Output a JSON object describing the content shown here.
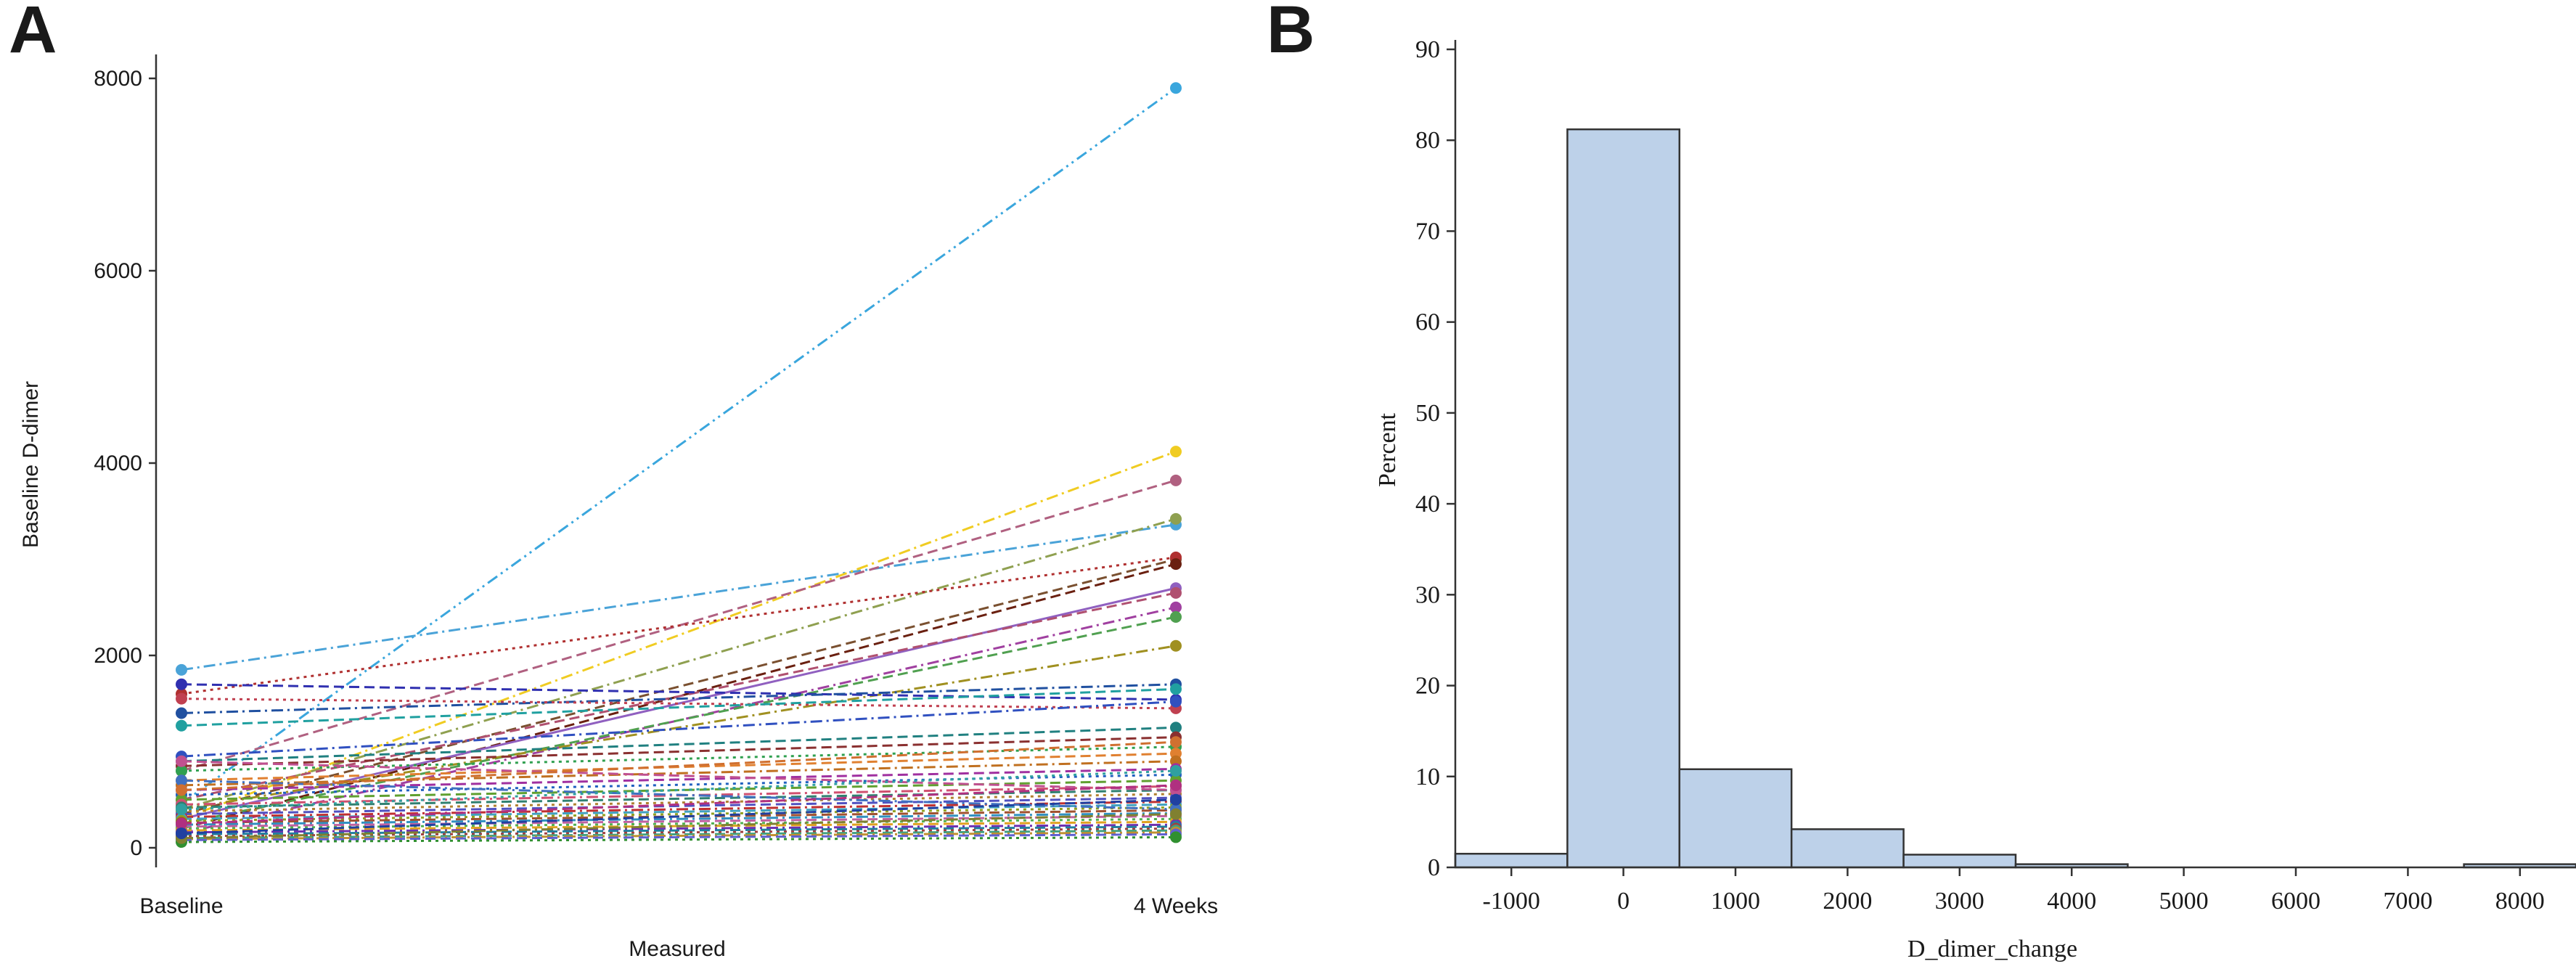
{
  "panels": {
    "a": {
      "letter": "A"
    },
    "b": {
      "letter": "B"
    }
  },
  "chart_data": [
    {
      "type": "line",
      "panel": "A",
      "xlabel": "Measured",
      "ylabel": "Baseline D-dimer",
      "categories": [
        "Baseline",
        "4 Weeks"
      ],
      "ylim": [
        0,
        8000
      ],
      "yticks": [
        0,
        2000,
        4000,
        6000,
        8000
      ],
      "grid": false,
      "series": [
        {
          "values": [
            460,
            7900
          ],
          "color": "#3aa6dd",
          "dash": "dashdotdot"
        },
        {
          "values": [
            1850,
            3360
          ],
          "color": "#4aa3d8",
          "dash": "dashdot"
        },
        {
          "values": [
            300,
            4120
          ],
          "color": "#f0cc22",
          "dash": "dashdot"
        },
        {
          "values": [
            800,
            3820
          ],
          "color": "#b06080",
          "dash": "dash"
        },
        {
          "values": [
            400,
            3420
          ],
          "color": "#8fa050",
          "dash": "dashdot"
        },
        {
          "values": [
            350,
            3000
          ],
          "color": "#7a5030",
          "dash": "dash"
        },
        {
          "values": [
            1600,
            3020
          ],
          "color": "#b03030",
          "dash": "dot"
        },
        {
          "values": [
            200,
            2950
          ],
          "color": "#6a2010",
          "dash": "dash"
        },
        {
          "values": [
            300,
            2700
          ],
          "color": "#9060c0",
          "dash": "solid"
        },
        {
          "values": [
            500,
            2650
          ],
          "color": "#b05070",
          "dash": "dash"
        },
        {
          "values": [
            150,
            2500
          ],
          "color": "#a040a0",
          "dash": "dashdot"
        },
        {
          "values": [
            250,
            2400
          ],
          "color": "#50a050",
          "dash": "dash"
        },
        {
          "values": [
            400,
            2100
          ],
          "color": "#a09020",
          "dash": "dashdot"
        },
        {
          "values": [
            1700,
            1540
          ],
          "color": "#3030b0",
          "dash": "dash"
        },
        {
          "values": [
            1400,
            1700
          ],
          "color": "#2050a0",
          "dash": "dashdot"
        },
        {
          "values": [
            1550,
            1450
          ],
          "color": "#c04050",
          "dash": "dot"
        },
        {
          "values": [
            1270,
            1650
          ],
          "color": "#20a0a0",
          "dash": "dash"
        },
        {
          "values": [
            950,
            1520
          ],
          "color": "#3050c0",
          "dash": "dashdot"
        },
        {
          "values": [
            900,
            1250
          ],
          "color": "#208080",
          "dash": "dash"
        },
        {
          "values": [
            850,
            1150
          ],
          "color": "#8a3030",
          "dash": "dash"
        },
        {
          "values": [
            800,
            1050
          ],
          "color": "#30a050",
          "dash": "dot"
        },
        {
          "values": [
            700,
            980
          ],
          "color": "#e08030",
          "dash": "dash"
        },
        {
          "values": [
            650,
            900
          ],
          "color": "#c07020",
          "dash": "dashdot"
        },
        {
          "values": [
            600,
            820
          ],
          "color": "#a030a0",
          "dash": "dash"
        },
        {
          "values": [
            550,
            760
          ],
          "color": "#2060c0",
          "dash": "dot"
        },
        {
          "values": [
            500,
            700
          ],
          "color": "#60a030",
          "dash": "dash"
        },
        {
          "values": [
            450,
            640
          ],
          "color": "#d05070",
          "dash": "dashdot"
        },
        {
          "values": [
            420,
            600
          ],
          "color": "#308070",
          "dash": "dash"
        },
        {
          "values": [
            380,
            560
          ],
          "color": "#b08030",
          "dash": "dot"
        },
        {
          "values": [
            350,
            520
          ],
          "color": "#5050c0",
          "dash": "dash"
        },
        {
          "values": [
            320,
            480
          ],
          "color": "#c03030",
          "dash": "dashdot"
        },
        {
          "values": [
            300,
            450
          ],
          "color": "#40a0c0",
          "dash": "dash"
        },
        {
          "values": [
            280,
            420
          ],
          "color": "#90a020",
          "dash": "dot"
        },
        {
          "values": [
            260,
            390
          ],
          "color": "#a05030",
          "dash": "dash"
        },
        {
          "values": [
            240,
            360
          ],
          "color": "#3090c0",
          "dash": "dashdot"
        },
        {
          "values": [
            220,
            330
          ],
          "color": "#c060a0",
          "dash": "dash"
        },
        {
          "values": [
            200,
            300
          ],
          "color": "#50b050",
          "dash": "dot"
        },
        {
          "values": [
            180,
            270
          ],
          "color": "#e0a020",
          "dash": "dash"
        },
        {
          "values": [
            160,
            240
          ],
          "color": "#7030b0",
          "dash": "dashdot"
        },
        {
          "values": [
            140,
            220
          ],
          "color": "#2080a0",
          "dash": "dash"
        },
        {
          "values": [
            120,
            200
          ],
          "color": "#a04040",
          "dash": "dot"
        },
        {
          "values": [
            100,
            180
          ],
          "color": "#40a080",
          "dash": "dash"
        },
        {
          "values": [
            90,
            160
          ],
          "color": "#c09030",
          "dash": "dashdot"
        },
        {
          "values": [
            80,
            140
          ],
          "color": "#6060d0",
          "dash": "dash"
        },
        {
          "values": [
            60,
            110
          ],
          "color": "#309030",
          "dash": "dot"
        },
        {
          "values": [
            900,
            600
          ],
          "color": "#c05090",
          "dash": "dash"
        },
        {
          "values": [
            700,
            400
          ],
          "color": "#4070c0",
          "dash": "dashdot"
        },
        {
          "values": [
            600,
            1100
          ],
          "color": "#d07030",
          "dash": "dash"
        },
        {
          "values": [
            400,
            800
          ],
          "color": "#30a0a0",
          "dash": "dot"
        },
        {
          "values": [
            250,
            650
          ],
          "color": "#b03080",
          "dash": "dash"
        },
        {
          "values": [
            100,
            350
          ],
          "color": "#808030",
          "dash": "dashdot"
        },
        {
          "values": [
            150,
            500
          ],
          "color": "#2040a0",
          "dash": "dash"
        }
      ]
    },
    {
      "type": "bar",
      "panel": "B",
      "xlabel": "D_dimer_change",
      "ylabel": "Percent",
      "x": [
        -1000,
        0,
        1000,
        2000,
        3000,
        4000,
        5000,
        6000,
        7000,
        8000
      ],
      "values": [
        1.5,
        81.2,
        10.8,
        4.2,
        1.4,
        0.35,
        0,
        0,
        0,
        0.35
      ],
      "bin_width": 1000,
      "xlim": [
        -1500,
        8500
      ],
      "ylim": [
        0,
        90
      ],
      "yticks": [
        0,
        10,
        20,
        30,
        40,
        50,
        60,
        70,
        80,
        90
      ],
      "xticks": [
        -1000,
        0,
        1000,
        2000,
        3000,
        4000,
        5000,
        6000,
        7000,
        8000
      ],
      "bar_color": "#bdd1e9",
      "grid": false
    }
  ]
}
